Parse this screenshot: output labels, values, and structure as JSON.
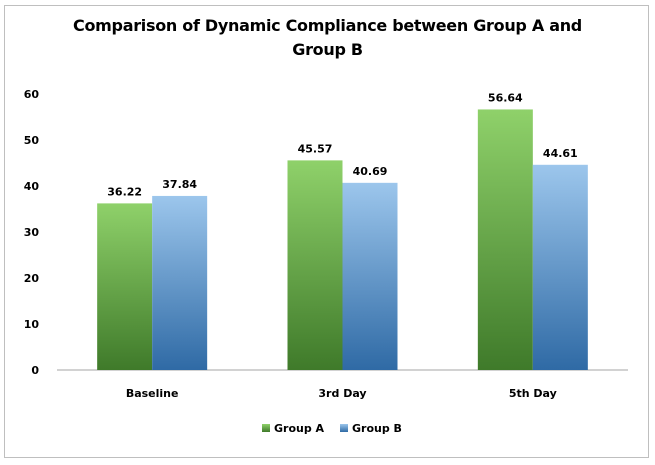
{
  "chart_data": {
    "type": "bar",
    "title": "Comparison of Dynamic Compliance between Group A and Group B",
    "categories": [
      "Baseline",
      "3rd Day",
      "5th Day"
    ],
    "series": [
      {
        "name": "Group A",
        "values": [
          36.22,
          45.57,
          56.64
        ],
        "color": "#70ad47"
      },
      {
        "name": "Group B",
        "values": [
          37.84,
          40.69,
          44.61
        ],
        "color": "#5b9bd5"
      }
    ],
    "value_labels": [
      [
        "36.22",
        "45.57",
        "56.64"
      ],
      [
        "37.84",
        "40.69",
        "44.61"
      ]
    ],
    "ylim": [
      0,
      60
    ],
    "yticks": [
      "0",
      "10",
      "20",
      "30",
      "40",
      "50",
      "60"
    ],
    "grid": false,
    "legend_position": "bottom"
  }
}
